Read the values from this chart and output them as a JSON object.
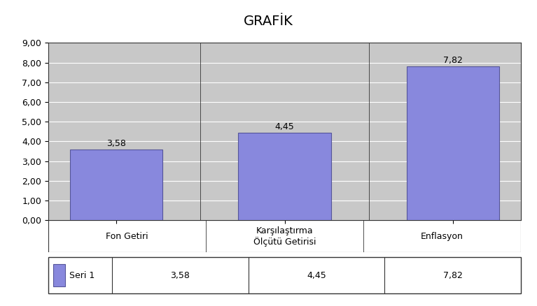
{
  "title": "GRAFİK",
  "categories": [
    "Fon Getiri",
    "Karşılaştırma\nÖlçütü Getirisi",
    "Enflasyon"
  ],
  "values": [
    3.58,
    4.45,
    7.82
  ],
  "bar_color": "#8888dd",
  "bar_edgecolor": "#555599",
  "ylim": [
    0,
    9
  ],
  "yticks": [
    0.0,
    1.0,
    2.0,
    3.0,
    4.0,
    5.0,
    6.0,
    7.0,
    8.0,
    9.0
  ],
  "ytick_labels": [
    "0,00",
    "1,00",
    "2,00",
    "3,00",
    "4,00",
    "5,00",
    "6,00",
    "7,00",
    "8,00",
    "9,00"
  ],
  "plot_bg_color": "#c8c8c8",
  "fig_bg_color": "#ffffff",
  "title_fontsize": 14,
  "tick_fontsize": 9,
  "label_fontsize": 9,
  "bar_label_fontsize": 9,
  "legend_label": "Seri 1",
  "legend_values": [
    "3,58",
    "4,45",
    "7,82"
  ],
  "grid_color": "#ffffff",
  "grid_linewidth": 0.8,
  "spine_color": "#333333",
  "border_color": "#333333"
}
